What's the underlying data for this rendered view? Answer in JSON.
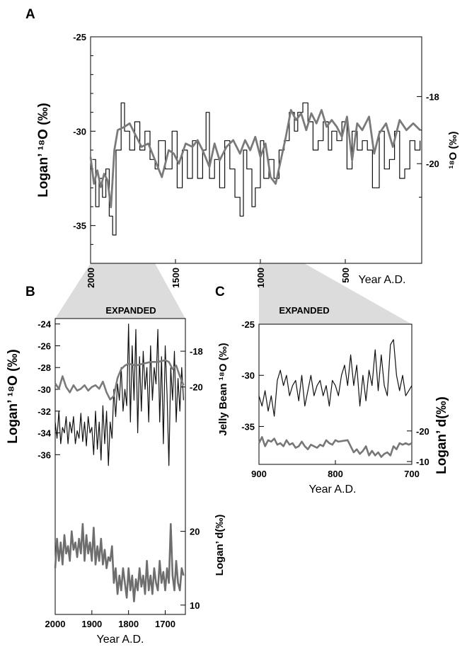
{
  "chart_data": [
    {
      "panel": "A",
      "type": "line",
      "xlabel": "Year A.D.",
      "ylabel_left": "Logan’ ¹⁸O (‰)",
      "ylabel_right": "¹⁸O (‰)",
      "x_reversed": true,
      "xlim": [
        2000,
        50
      ],
      "ylim_left": [
        -37,
        -25
      ],
      "ylim_right": [
        -22,
        -17
      ],
      "x_ticks": [
        2000,
        1500,
        1000,
        500
      ],
      "y_ticks_left": [
        -25,
        -30,
        -35
      ],
      "y_ticks_right": [
        -18,
        -20
      ],
      "series": [
        {
          "axis": "left",
          "style": "step",
          "color": "#111111",
          "x": [
            1990,
            1970,
            1950,
            1930,
            1910,
            1890,
            1870,
            1850,
            1820,
            1800,
            1770,
            1740,
            1710,
            1680,
            1650,
            1620,
            1600,
            1560,
            1520,
            1490,
            1460,
            1430,
            1400,
            1370,
            1340,
            1320,
            1300,
            1270,
            1240,
            1210,
            1180,
            1150,
            1120,
            1100,
            1080,
            1050,
            1030,
            1000,
            980,
            950,
            920,
            890,
            860,
            830,
            800,
            780,
            750,
            720,
            690,
            660,
            630,
            600,
            580,
            550,
            520,
            490,
            460,
            430,
            400,
            370,
            340,
            300,
            270,
            240,
            210,
            180,
            150,
            120,
            90,
            60
          ],
          "y": [
            -31.5,
            -34,
            -32.5,
            -33.5,
            -32,
            -34.5,
            -35.5,
            -31,
            -28.5,
            -30,
            -31,
            -29.5,
            -31,
            -30,
            -31.5,
            -32,
            -30.5,
            -32,
            -30,
            -33,
            -31,
            -32.5,
            -30.5,
            -32.5,
            -31,
            -29,
            -32.5,
            -31.5,
            -33,
            -30.5,
            -32,
            -33.5,
            -34.5,
            -31,
            -32,
            -34,
            -33,
            -30.5,
            -32.5,
            -31.5,
            -32.5,
            -31,
            -30.5,
            -29,
            -30,
            -29,
            -28.5,
            -29.5,
            -31,
            -30.5,
            -29.5,
            -31,
            -30,
            -30.5,
            -29.5,
            -32,
            -30,
            -31,
            -30.5,
            -31,
            -33,
            -30,
            -32,
            -31.5,
            -30,
            -32.5,
            -32,
            -30.5,
            -31,
            -30.5
          ]
        },
        {
          "axis": "right",
          "style": "line",
          "color": "#7a7a7a",
          "x": [
            2000,
            1980,
            1960,
            1940,
            1920,
            1900,
            1880,
            1860,
            1840,
            1800,
            1770,
            1740,
            1700,
            1660,
            1620,
            1580,
            1540,
            1510,
            1480,
            1440,
            1400,
            1370,
            1340,
            1300,
            1270,
            1240,
            1200,
            1160,
            1120,
            1090,
            1060,
            1030,
            1000,
            970,
            940,
            910,
            880,
            850,
            820,
            790,
            760,
            730,
            700,
            670,
            640,
            610,
            580,
            550,
            520,
            490,
            460,
            430,
            400,
            360,
            330,
            300,
            260,
            220,
            180,
            140,
            100,
            60
          ],
          "y": [
            -19.8,
            -20.6,
            -20.2,
            -20.7,
            -20.3,
            -20.5,
            -21.3,
            -19.6,
            -19,
            -18.9,
            -18.8,
            -19.1,
            -19.5,
            -19.4,
            -19.9,
            -20.4,
            -19.6,
            -19.7,
            -20,
            -19.4,
            -19.5,
            -19.3,
            -19.6,
            -20.1,
            -19.4,
            -19.9,
            -19.5,
            -19.3,
            -19.7,
            -19.3,
            -19.6,
            -19.2,
            -19.8,
            -19.4,
            -20.4,
            -20.6,
            -19.9,
            -19.2,
            -18.4,
            -18.7,
            -18.5,
            -19,
            -18.5,
            -18.8,
            -18.4,
            -18.9,
            -18.7,
            -18.9,
            -19.2,
            -18.6,
            -19.9,
            -18.8,
            -19,
            -18.6,
            -19.7,
            -19.1,
            -18.8,
            -19.5,
            -18.7,
            -19,
            -18.8,
            -19
          ]
        }
      ]
    },
    {
      "panel": "B",
      "type": "line",
      "title": "EXPANDED",
      "xlabel": "Year A.D.",
      "ylabel_left": "Logan’ ¹⁸O (‰)",
      "ylabel_right_top": "",
      "ylabel_right_bottom": "Logan’ d(‰)",
      "x_reversed": true,
      "xlim": [
        2000,
        1645
      ],
      "ylim_left": [
        -37.8,
        -23.5
      ],
      "ylim_right_top": [
        -21,
        -17.6
      ],
      "ylim_right_bottom": [
        9.5,
        21.5
      ],
      "x_ticks": [
        2000,
        1900,
        1800,
        1700
      ],
      "y_ticks_left": [
        -24,
        -26,
        -28,
        -30,
        -32,
        -34,
        -36
      ],
      "y_ticks_right_top": [
        -18,
        -20
      ],
      "y_ticks_right_bottom": [
        20,
        10
      ],
      "series": [
        {
          "axis": "left",
          "color": "#111111",
          "x": [
            2000,
            1995,
            1990,
            1985,
            1980,
            1975,
            1970,
            1965,
            1960,
            1955,
            1950,
            1945,
            1940,
            1935,
            1930,
            1925,
            1920,
            1915,
            1910,
            1905,
            1900,
            1895,
            1890,
            1885,
            1880,
            1875,
            1870,
            1865,
            1860,
            1855,
            1850,
            1845,
            1840,
            1835,
            1830,
            1825,
            1820,
            1815,
            1810,
            1805,
            1800,
            1795,
            1790,
            1785,
            1780,
            1775,
            1770,
            1765,
            1760,
            1755,
            1750,
            1745,
            1740,
            1735,
            1730,
            1725,
            1720,
            1715,
            1710,
            1705,
            1700,
            1695,
            1690,
            1685,
            1680,
            1675,
            1670,
            1665,
            1660,
            1655,
            1650
          ],
          "y": [
            -33,
            -34.5,
            -32,
            -35,
            -33.5,
            -34,
            -32.5,
            -35,
            -33,
            -34,
            -32.5,
            -35,
            -33.8,
            -34.5,
            -32.2,
            -34.8,
            -33,
            -35.2,
            -32.5,
            -34,
            -33.5,
            -36,
            -32,
            -35.5,
            -33,
            -36.5,
            -31.5,
            -35,
            -32,
            -37,
            -33,
            -34.5,
            -30,
            -32.5,
            -29.5,
            -31,
            -28,
            -32,
            -30,
            -31.5,
            -24,
            -33,
            -26,
            -31,
            -24.5,
            -34,
            -27,
            -32,
            -26.5,
            -30,
            -28,
            -33,
            -26,
            -31,
            -28,
            -29.5,
            -24.5,
            -33,
            -27,
            -35,
            -26,
            -30.5,
            -37,
            -28,
            -31,
            -26.5,
            -33,
            -29,
            -32,
            -28,
            -31
          ]
        },
        {
          "axis": "right_top",
          "color": "#7a7a7a",
          "x": [
            2000,
            1990,
            1980,
            1970,
            1960,
            1950,
            1940,
            1930,
            1920,
            1910,
            1900,
            1890,
            1880,
            1870,
            1860,
            1850,
            1840,
            1830,
            1820,
            1810,
            1800,
            1780,
            1760,
            1740,
            1720,
            1700,
            1690,
            1680,
            1670,
            1660,
            1650
          ],
          "y": [
            -19.8,
            -20.1,
            -19.4,
            -20,
            -20.3,
            -19.9,
            -20.2,
            -20.1,
            -19.9,
            -20.2,
            -20,
            -19.9,
            -20.1,
            -19.7,
            -20.3,
            -20.7,
            -20.5,
            -19.5,
            -19,
            -18.8,
            -18.7,
            -18.8,
            -18.7,
            -18.6,
            -18.6,
            -18.5,
            -18.6,
            -19,
            -18.8,
            -19.4,
            -19.9
          ]
        },
        {
          "axis": "right_bottom",
          "color": "#6e6e6e",
          "x": [
            2000,
            1995,
            1990,
            1985,
            1980,
            1975,
            1970,
            1965,
            1960,
            1955,
            1950,
            1945,
            1940,
            1935,
            1930,
            1925,
            1920,
            1915,
            1910,
            1905,
            1900,
            1895,
            1890,
            1885,
            1880,
            1875,
            1870,
            1865,
            1860,
            1855,
            1850,
            1845,
            1840,
            1835,
            1830,
            1825,
            1820,
            1815,
            1810,
            1805,
            1800,
            1795,
            1790,
            1785,
            1780,
            1775,
            1770,
            1765,
            1760,
            1755,
            1750,
            1745,
            1740,
            1735,
            1730,
            1725,
            1720,
            1715,
            1710,
            1705,
            1700,
            1695,
            1690,
            1685,
            1680,
            1675,
            1670,
            1665,
            1660,
            1655,
            1650
          ],
          "y": [
            15,
            19,
            16,
            18.5,
            15.5,
            19.5,
            17,
            18,
            16,
            20,
            17.5,
            18.5,
            16.5,
            19,
            17,
            21,
            16,
            19.5,
            17,
            18.5,
            16,
            20.5,
            15.5,
            18,
            16,
            19,
            15.5,
            17.5,
            15,
            16.5,
            16,
            18,
            13,
            15,
            11.5,
            14,
            12,
            15,
            13,
            11,
            15,
            12,
            14,
            10.5,
            13.5,
            12,
            15,
            12.5,
            14,
            11.5,
            16,
            12,
            14,
            11.5,
            15,
            13,
            12,
            16,
            13,
            14.5,
            12,
            15,
            13,
            21,
            14,
            12,
            16,
            13,
            12,
            15,
            14
          ]
        }
      ]
    },
    {
      "panel": "C",
      "type": "line",
      "title": "EXPANDED",
      "xlabel": "Year A.D.",
      "ylabel_left": "",
      "ylabel_right": "Logan’ d(‰)",
      "x_reversed": true,
      "xlim": [
        900,
        700
      ],
      "ylim_left": [
        -38.5,
        -25
      ],
      "ylim_right": [
        -10,
        -22.5
      ],
      "x_ticks": [
        900,
        800,
        700
      ],
      "y_ticks_left": [
        -25,
        -30,
        -35
      ],
      "y_ticks_right": [
        -20,
        -10
      ],
      "series": [
        {
          "axis": "left",
          "color": "#111111",
          "x": [
            900,
            896,
            892,
            888,
            884,
            880,
            876,
            872,
            868,
            864,
            860,
            856,
            852,
            848,
            844,
            840,
            836,
            832,
            828,
            824,
            820,
            816,
            812,
            808,
            804,
            800,
            796,
            792,
            788,
            784,
            780,
            776,
            772,
            768,
            764,
            760,
            756,
            752,
            748,
            744,
            740,
            736,
            732,
            728,
            724,
            720,
            716,
            712,
            708,
            704,
            700
          ],
          "y": [
            -32,
            -33,
            -31.5,
            -33.5,
            -32,
            -34,
            -30.5,
            -29.5,
            -31,
            -30,
            -32,
            -31,
            -30.5,
            -32.5,
            -30,
            -33,
            -31.5,
            -30,
            -32,
            -31,
            -30.5,
            -32,
            -31,
            -33,
            -30.5,
            -31,
            -32,
            -30,
            -29,
            -31,
            -28,
            -31,
            -29,
            -33,
            -30,
            -32.5,
            -29.5,
            -31,
            -27.5,
            -31.5,
            -28,
            -31,
            -32,
            -27,
            -26.5,
            -30,
            -31.5,
            -30,
            -32,
            -31.5,
            -31
          ]
        },
        {
          "axis": "right",
          "color": "#777777",
          "x": [
            900,
            896,
            892,
            888,
            884,
            880,
            876,
            872,
            868,
            864,
            860,
            856,
            852,
            848,
            844,
            840,
            836,
            832,
            828,
            824,
            820,
            816,
            812,
            808,
            804,
            800,
            796,
            784,
            780,
            776,
            772,
            768,
            764,
            760,
            756,
            752,
            748,
            744,
            740,
            736,
            732,
            728,
            724,
            720,
            716,
            712,
            708,
            704,
            700
          ],
          "y": [
            -16,
            -18,
            -15,
            -17,
            -16.5,
            -17.5,
            -15.5,
            -16,
            -15,
            -17,
            -15.5,
            -16,
            -14.5,
            -15,
            -16.5,
            -15,
            -14,
            -15.5,
            -15,
            -14.5,
            -15.5,
            -15,
            -17,
            -16,
            -15.5,
            -17,
            -16.5,
            -17,
            -15,
            -13,
            -14,
            -12.5,
            -13.5,
            -15,
            -12,
            -13.5,
            -12,
            -13,
            -11.5,
            -12.5,
            -13,
            -12,
            -15,
            -14,
            -16,
            -15.5,
            -16,
            -15.5,
            -16
          ]
        }
      ]
    }
  ],
  "labels": {
    "panel_a": "A",
    "panel_b": "B",
    "panel_c": "C",
    "a_ylabel_left": "Logan’ ¹⁸O (‰)",
    "a_ylabel_right": "¹⁸O (‰)",
    "a_xlabel": "Year A.D.",
    "b_title": "EXPANDED",
    "b_ylabel_left": "Logan’ ¹⁸O (‰)",
    "b_ylabel_right_bottom": "Logan’ d(‰)",
    "b_xlabel": "Year A.D.",
    "c_title": "EXPANDED",
    "c_ylabel_left": "Jelly Bean ¹⁸O (‰)",
    "c_ylabel_right": "Logan’ d(‰)",
    "c_xlabel": "Year A.D."
  }
}
